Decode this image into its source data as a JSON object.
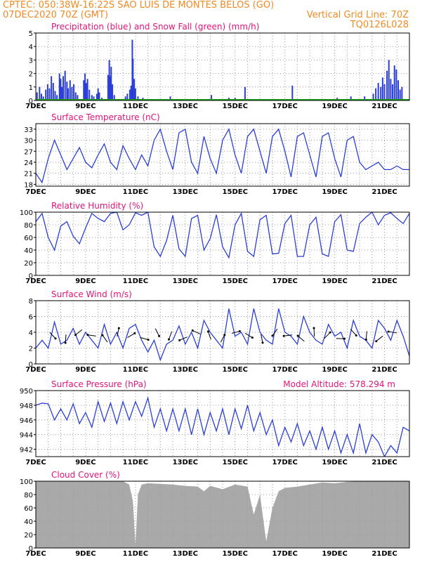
{
  "header": {
    "line1_left": "CPTEC:   050:38W-16:22S   SAO LUIS DE MONTES BELOS (GO)",
    "line2_left": "07DEC2020 70Z (GMT)",
    "line2_right": "Vertical Grid Line: 70Z",
    "line3_right": "TQ0126L028"
  },
  "colors": {
    "header": "#f08a24",
    "title": "#e0157a",
    "line": "#2b3fd6",
    "precip": "#2b3fd6",
    "snow": "#1ca31c",
    "cloud": "#a9a9a9",
    "grid": "#9a9a9a"
  },
  "x_ticks": [
    "7DEC",
    "9DEC",
    "11DEC",
    "13DEC",
    "15DEC",
    "17DEC",
    "19DEC",
    "21DEC"
  ],
  "chart_data": [
    {
      "type": "bar",
      "title": "Precipitation (blue) and Snow Fall (green) (mm/h)",
      "ylim": [
        0,
        5
      ],
      "yticks": [
        0,
        1,
        2,
        3,
        4,
        5
      ],
      "series": [
        {
          "name": "Precipitation",
          "color": "#2b3fd6",
          "values": [
            [
              0.1,
              0.6
            ],
            [
              0.3,
              1.0
            ],
            [
              0.45,
              0.5
            ],
            [
              0.6,
              0.3
            ],
            [
              0.8,
              0.8
            ],
            [
              0.95,
              1.2
            ],
            [
              1.1,
              0.9
            ],
            [
              1.25,
              1.8
            ],
            [
              1.4,
              1.3
            ],
            [
              1.55,
              0.7
            ],
            [
              1.7,
              0.4
            ],
            [
              1.9,
              2.0
            ],
            [
              2.0,
              1.6
            ],
            [
              2.1,
              1.0
            ],
            [
              2.2,
              1.8
            ],
            [
              2.35,
              2.2
            ],
            [
              2.5,
              1.4
            ],
            [
              2.6,
              0.9
            ],
            [
              2.75,
              1.5
            ],
            [
              2.9,
              1.0
            ],
            [
              3.05,
              1.2
            ],
            [
              3.2,
              0.6
            ],
            [
              3.35,
              0.4
            ],
            [
              3.85,
              1.5
            ],
            [
              3.95,
              2.0
            ],
            [
              4.05,
              1.3
            ],
            [
              4.15,
              1.6
            ],
            [
              4.3,
              0.8
            ],
            [
              4.5,
              0.4
            ],
            [
              4.65,
              0.3
            ],
            [
              4.9,
              0.5
            ],
            [
              5.0,
              0.9
            ],
            [
              5.1,
              0.6
            ],
            [
              5.3,
              0.2
            ],
            [
              5.8,
              1.9
            ],
            [
              5.9,
              3.0
            ],
            [
              6.0,
              1.8
            ],
            [
              6.05,
              2.5
            ],
            [
              6.15,
              1.2
            ],
            [
              6.3,
              0.4
            ],
            [
              7.2,
              0.3
            ],
            [
              7.35,
              0.5
            ],
            [
              7.55,
              0.8
            ],
            [
              7.65,
              1.1
            ],
            [
              7.75,
              4.5
            ],
            [
              7.8,
              3.1
            ],
            [
              7.9,
              1.6
            ],
            [
              8.0,
              0.9
            ],
            [
              8.2,
              0.3
            ],
            [
              8.6,
              0.2
            ],
            [
              10.8,
              0.3
            ],
            [
              14.1,
              0.4
            ],
            [
              15.5,
              0.2
            ],
            [
              16.0,
              0.2
            ],
            [
              16.8,
              1.0
            ],
            [
              20.6,
              1.1
            ],
            [
              24.2,
              0.2
            ],
            [
              25.3,
              0.3
            ],
            [
              26.4,
              0.3
            ],
            [
              27.1,
              0.5
            ],
            [
              27.3,
              0.9
            ],
            [
              27.5,
              1.3
            ],
            [
              27.7,
              1.0
            ],
            [
              27.85,
              1.7
            ],
            [
              28.0,
              1.2
            ],
            [
              28.2,
              2.2
            ],
            [
              28.35,
              3.0
            ],
            [
              28.5,
              1.6
            ],
            [
              28.65,
              1.2
            ],
            [
              28.8,
              2.6
            ],
            [
              28.95,
              2.3
            ],
            [
              29.1,
              1.5
            ],
            [
              29.25,
              0.8
            ],
            [
              29.4,
              1.0
            ]
          ]
        },
        {
          "name": "Snow Fall",
          "color": "#1ca31c",
          "values": [
            [
              0,
              0.02
            ],
            [
              30,
              0.02
            ]
          ]
        }
      ]
    },
    {
      "type": "line",
      "title": "Surface Temperature (nC)",
      "ylim": [
        17.5,
        34.5
      ],
      "yticks": [
        18,
        21,
        24,
        27,
        30,
        33
      ],
      "x": [
        0,
        0.5,
        1,
        1.5,
        2,
        2.5,
        3,
        3.5,
        4,
        4.5,
        5,
        5.5,
        6,
        6.5,
        7,
        7.5,
        8,
        8.5,
        9,
        9.5,
        10,
        10.5,
        11,
        11.5,
        12,
        12.5,
        13,
        13.5,
        14,
        14.5,
        15,
        15.5,
        16,
        16.5,
        17,
        17.5,
        18,
        18.5,
        19,
        19.5,
        20,
        20.5,
        21,
        21.5,
        22,
        22.5,
        23,
        23.5,
        24,
        24.5,
        25,
        25.5,
        26,
        26.5,
        27,
        27.5,
        28,
        28.5,
        29,
        29.5,
        30
      ],
      "values": [
        21,
        18.5,
        25,
        30,
        26,
        22,
        25,
        28,
        24,
        22.5,
        26,
        29,
        24,
        22,
        28.5,
        25,
        22,
        26,
        23,
        30,
        33,
        27,
        22,
        32,
        33,
        24,
        21,
        31,
        25,
        21,
        30,
        33,
        26,
        21,
        31,
        33,
        27,
        21,
        31,
        33,
        27,
        20,
        31,
        32,
        26,
        20,
        31,
        32,
        25,
        20,
        30,
        31,
        24,
        22,
        23,
        24,
        22,
        22,
        23,
        22,
        22
      ]
    },
    {
      "type": "line",
      "title": "Relative Humidity (%)",
      "ylim": [
        0,
        100
      ],
      "yticks": [
        0,
        20,
        40,
        60,
        80,
        100
      ],
      "x": [
        0,
        0.5,
        1,
        1.5,
        2,
        2.5,
        3,
        3.5,
        4,
        4.5,
        5,
        5.5,
        6,
        6.5,
        7,
        7.5,
        8,
        8.5,
        9,
        9.5,
        10,
        10.5,
        11,
        11.5,
        12,
        12.5,
        13,
        13.5,
        14,
        14.5,
        15,
        15.5,
        16,
        16.5,
        17,
        17.5,
        18,
        18.5,
        19,
        19.5,
        20,
        20.5,
        21,
        21.5,
        22,
        22.5,
        23,
        23.5,
        24,
        24.5,
        25,
        25.5,
        26,
        26.5,
        27,
        27.5,
        28,
        28.5,
        29,
        29.5,
        30
      ],
      "values": [
        85,
        98,
        60,
        40,
        78,
        85,
        62,
        50,
        75,
        98,
        90,
        85,
        98,
        100,
        72,
        80,
        99,
        95,
        100,
        45,
        30,
        55,
        95,
        42,
        30,
        90,
        95,
        40,
        58,
        96,
        45,
        28,
        80,
        98,
        38,
        30,
        88,
        95,
        34,
        35,
        82,
        95,
        30,
        30,
        80,
        92,
        34,
        30,
        85,
        96,
        40,
        38,
        82,
        92,
        100,
        80,
        95,
        99,
        90,
        82,
        98
      ]
    },
    {
      "type": "line",
      "title": "Surface Wind (m/s)",
      "ylim": [
        0,
        8
      ],
      "yticks": [
        0,
        2,
        4,
        6,
        8
      ],
      "x": [
        0,
        0.5,
        1,
        1.5,
        2,
        2.5,
        3,
        3.5,
        4,
        4.5,
        5,
        5.5,
        6,
        6.5,
        7,
        7.5,
        8,
        8.5,
        9,
        9.5,
        10,
        10.5,
        11,
        11.5,
        12,
        12.5,
        13,
        13.5,
        14,
        14.5,
        15,
        15.5,
        16,
        16.5,
        17,
        17.5,
        18,
        18.5,
        19,
        19.5,
        20,
        20.5,
        21,
        21.5,
        22,
        22.5,
        23,
        23.5,
        24,
        24.5,
        25,
        25.5,
        26,
        26.5,
        27,
        27.5,
        28,
        28.5,
        29,
        29.5,
        30
      ],
      "values": [
        2,
        3,
        2,
        5.3,
        2.5,
        3,
        4.5,
        2.5,
        4,
        3,
        2,
        5,
        2.5,
        4,
        2,
        4.5,
        5,
        3,
        1.5,
        3,
        0.5,
        2.5,
        3,
        4.8,
        2.5,
        4,
        2,
        5.5,
        4,
        3,
        2,
        7,
        3.5,
        4,
        2.5,
        7,
        4,
        3,
        2.5,
        7,
        4,
        3.5,
        2.5,
        6,
        4,
        3,
        2.5,
        5,
        3.5,
        4,
        2,
        5.5,
        3.5,
        3,
        2,
        5.5,
        4.5,
        3,
        5.5,
        3.5,
        1
      ]
    },
    {
      "type": "line",
      "title": "Surface Pressure (hPa)",
      "annotation": "Model Altitude: 578.294 m",
      "ylim": [
        941,
        950
      ],
      "yticks": [
        942,
        944,
        946,
        948,
        950
      ],
      "x": [
        0,
        0.5,
        1,
        1.5,
        2,
        2.5,
        3,
        3.5,
        4,
        4.5,
        5,
        5.5,
        6,
        6.5,
        7,
        7.5,
        8,
        8.5,
        9,
        9.5,
        10,
        10.5,
        11,
        11.5,
        12,
        12.5,
        13,
        13.5,
        14,
        14.5,
        15,
        15.5,
        16,
        16.5,
        17,
        17.5,
        18,
        18.5,
        19,
        19.5,
        20,
        20.5,
        21,
        21.5,
        22,
        22.5,
        23,
        23.5,
        24,
        24.5,
        25,
        25.5,
        26,
        26.5,
        27,
        27.5,
        28,
        28.5,
        29,
        29.5,
        30
      ],
      "values": [
        948,
        948.3,
        948.2,
        946,
        947.5,
        946,
        948.2,
        945.5,
        947,
        945,
        948.5,
        945.8,
        948.3,
        945.5,
        948.5,
        946,
        948.5,
        946.5,
        949,
        945,
        947.5,
        944.5,
        947.5,
        944.5,
        947.5,
        944,
        947.5,
        944,
        947,
        944.5,
        947.5,
        944,
        947.5,
        944.8,
        948,
        944.5,
        947,
        944,
        946,
        942.5,
        945,
        943,
        945.5,
        942.5,
        944.5,
        942,
        945,
        942,
        944.5,
        941.5,
        944,
        941.5,
        945.5,
        941.5,
        944,
        943,
        941,
        942.5,
        941.5,
        945,
        944.5
      ]
    },
    {
      "type": "area",
      "title": "Cloud Cover (%)",
      "ylim": [
        0,
        100
      ],
      "yticks": [
        0,
        20,
        40,
        60,
        80,
        100
      ],
      "x": [
        0,
        1,
        2,
        3,
        4,
        5,
        6,
        7,
        7.5,
        7.8,
        8.0,
        8.2,
        8.5,
        9,
        10,
        11,
        12,
        13,
        13.5,
        14,
        15,
        16,
        17,
        17.5,
        18,
        18.5,
        19,
        19.5,
        20,
        21,
        22,
        23,
        24,
        25,
        26,
        27,
        28,
        29,
        30
      ],
      "values": [
        100,
        100,
        100,
        100,
        100,
        100,
        100,
        100,
        95,
        70,
        4,
        80,
        95,
        97,
        96,
        95,
        93,
        92,
        85,
        93,
        88,
        95,
        92,
        50,
        80,
        10,
        60,
        85,
        90,
        92,
        95,
        98,
        97,
        99,
        100,
        100,
        100,
        100,
        100
      ]
    }
  ]
}
